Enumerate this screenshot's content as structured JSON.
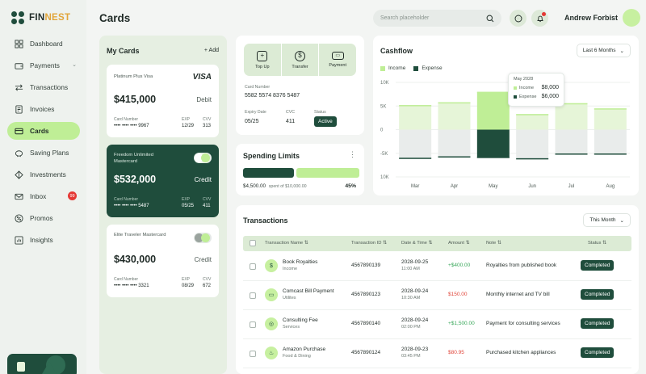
{
  "app": {
    "brand_a": "FIN",
    "brand_b": "NEST",
    "page_title": "Cards"
  },
  "sidebar": {
    "items": [
      {
        "label": "Dashboard"
      },
      {
        "label": "Payments"
      },
      {
        "label": "Transactions"
      },
      {
        "label": "Invoices"
      },
      {
        "label": "Cards"
      },
      {
        "label": "Saving Plans"
      },
      {
        "label": "Investments"
      },
      {
        "label": "Inbox",
        "badge": "99"
      },
      {
        "label": "Promos"
      },
      {
        "label": "Insights"
      }
    ]
  },
  "header": {
    "search_placeholder": "Search placeholder",
    "user_name": "Andrew Forbist"
  },
  "my_cards": {
    "title": "My Cards",
    "add_label": "+ Add",
    "cards": [
      {
        "name": "Platinum Plus Visa",
        "brand": "VISA",
        "balance": "$415,000",
        "type": "Debit",
        "number_label": "Card Number",
        "number": "•••• •••• •••• 9967",
        "exp_label": "EXP",
        "exp": "12/29",
        "cvv_label": "CVV",
        "cvv": "313"
      },
      {
        "name": "Freedom Unlimited Mastercard",
        "balance": "$532,000",
        "type": "Credit",
        "number_label": "Card Number",
        "number": "•••• •••• •••• 5487",
        "exp_label": "EXP",
        "exp": "05/25",
        "cvv_label": "CVV",
        "cvv": "411"
      },
      {
        "name": "Elite Traveler Mastercard",
        "balance": "$430,000",
        "type": "Credit",
        "number_label": "Card Number",
        "number": "•••• •••• •••• 3321",
        "exp_label": "EXP",
        "exp": "08/29",
        "cvv_label": "CVV",
        "cvv": "672"
      }
    ]
  },
  "card_info": {
    "actions": [
      {
        "label": "Top Up"
      },
      {
        "label": "Transfer"
      },
      {
        "label": "Payment"
      }
    ],
    "number_label": "Card Number",
    "number": "5582 5574 8376 5487",
    "expiry_label": "Expiry Date",
    "expiry": "05/25",
    "cvc_label": "CVC",
    "cvc": "411",
    "status_label": "Status",
    "status": "Active"
  },
  "spending_limits": {
    "title": "Spending Limits",
    "spent": "$4,500.00",
    "spent_suffix": "spent of $10,000.00",
    "percent": "45%",
    "fraction": 0.45
  },
  "cashflow": {
    "title": "Cashflow",
    "range": "Last 6 Months",
    "legend": {
      "income": "Income",
      "expense": "Expense"
    },
    "colors": {
      "income": "#bfee96",
      "expense": "#1f4d3c"
    },
    "tooltip": {
      "month": "May 2028",
      "income_label": "Income",
      "income": "$8,000",
      "expense_label": "Expense",
      "expense": "$6,000"
    }
  },
  "chart_data": {
    "type": "bar",
    "categories": [
      "Mar",
      "Apr",
      "May",
      "Jun",
      "Jul",
      "Aug"
    ],
    "series": [
      {
        "name": "Income",
        "values": [
          5200,
          5800,
          8000,
          3300,
          5600,
          4500
        ]
      },
      {
        "name": "Expense",
        "values": [
          -6200,
          -5900,
          -6000,
          -6300,
          -5300,
          -5300
        ]
      }
    ],
    "yticks": [
      "10K",
      "5K",
      "0",
      "-5K",
      "10K"
    ],
    "ylim": [
      -10000,
      10000
    ],
    "highlight": "May"
  },
  "transactions": {
    "title": "Transactions",
    "range": "This Month",
    "headers": {
      "name": "Transaction Name",
      "id": "Transaction ID",
      "date": "Date & Time",
      "amount": "Amount",
      "note": "Note",
      "status": "Status"
    },
    "rows": [
      {
        "name": "Book Royalties",
        "category": "Income",
        "id": "4567890139",
        "date": "2028-09-25",
        "time": "11:00 AM",
        "amount": "+$400.00",
        "note": "Royalties from published book",
        "status": "Completed"
      },
      {
        "name": "Comcast Bill Payment",
        "category": "Utilites",
        "id": "4567890123",
        "date": "2028-09-24",
        "time": "10:30 AM",
        "amount": "$150.00",
        "note": "Monthly internet and TV bill",
        "status": "Completed"
      },
      {
        "name": "Consulting Fee",
        "category": "Services",
        "id": "4567890140",
        "date": "2028-09-24",
        "time": "02:00 PM",
        "amount": "+$1,500.00",
        "note": "Payment for consulting services",
        "status": "Completed"
      },
      {
        "name": "Amazon Purchase",
        "category": "Food & Dining",
        "id": "4567890124",
        "date": "2028-09-23",
        "time": "03:45 PM",
        "amount": "$80.95",
        "note": "Purchased kitchen appliances",
        "status": "Completed"
      }
    ]
  }
}
